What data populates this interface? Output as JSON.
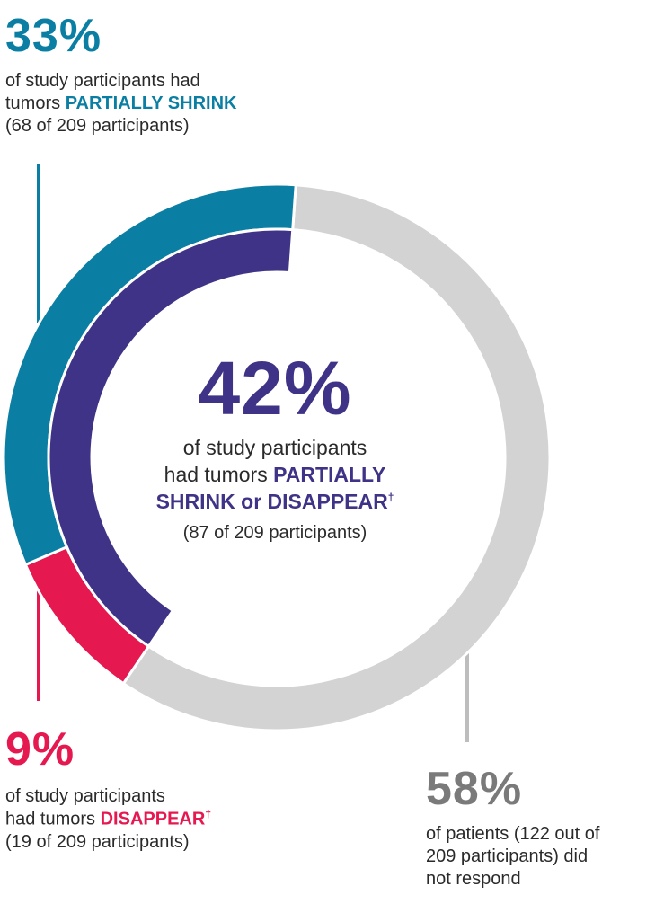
{
  "colors": {
    "partial": "#0a7fa3",
    "complete": "#e5184f",
    "combined": "#3e3386",
    "none": "#d3d3d3",
    "none_text": "#7a7a7a",
    "line_partial": "#0a7fa3",
    "line_complete": "#e5184f",
    "line_none": "#bdbdbd"
  },
  "callouts": {
    "partial": {
      "percent": "33%",
      "line1": "of study participants had",
      "line2_prefix": "tumors ",
      "highlight": "PARTIALLY SHRINK",
      "line3": "(68 of 209 participants)"
    },
    "complete": {
      "percent": "9%",
      "line1": "of study participants",
      "line2_prefix": "had tumors ",
      "highlight": "DISAPPEAR",
      "dagger": "†",
      "line3": "(19 of 209 participants)"
    },
    "none": {
      "percent": "58%",
      "line1": "of patients (122 out of",
      "line2": "209 participants) did",
      "line3": "not respond"
    },
    "center": {
      "percent": "42%",
      "line1": "of study participants",
      "line2_prefix": "had tumors ",
      "line2_highlight": "PARTIALLY",
      "line3_highlight": "SHRINK or DISAPPEAR",
      "dagger": "†",
      "line4": "(87 of 209 participants)"
    }
  },
  "chart_data": {
    "type": "pie",
    "total": 209,
    "outer_ring": [
      {
        "label": "PARTIALLY SHRINK",
        "value": 68,
        "percent": 33
      },
      {
        "label": "DISAPPEAR",
        "value": 19,
        "percent": 9
      },
      {
        "label": "did not respond",
        "value": 122,
        "percent": 58
      }
    ],
    "inner_ring": [
      {
        "label": "PARTIALLY SHRINK or DISAPPEAR",
        "value": 87,
        "percent": 42
      }
    ]
  }
}
